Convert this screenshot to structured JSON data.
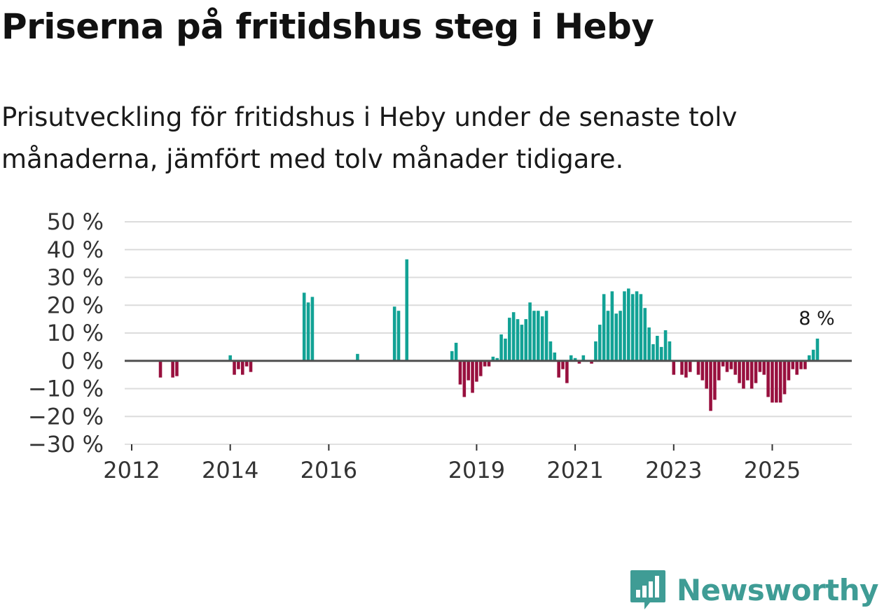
{
  "title": "Priserna på fritidshus steg i Heby",
  "subtitle": "Prisutveckling för fritidshus i Heby under de senaste tolv månaderna, jämfört med tolv månader tidigare.",
  "brand": {
    "name": "Newsworthy",
    "icon": "newsworthy-logo-icon",
    "color": "#3f9c95"
  },
  "colors": {
    "positive": "#12a295",
    "negative": "#98103e",
    "grid": "#dcdcdc",
    "zero": "#505050"
  },
  "chart_data": {
    "type": "bar",
    "unit": "%",
    "ylim": [
      -30,
      50
    ],
    "yticks": [
      50,
      40,
      30,
      20,
      10,
      0,
      -10,
      -20,
      -30
    ],
    "ytick_labels": [
      "50 %",
      "40 %",
      "30 %",
      "20 %",
      "10 %",
      "0 %",
      "−10 %",
      "−20 %",
      "−30 %"
    ],
    "xlim": [
      2012,
      2026.5
    ],
    "xticks": [
      2012,
      2014,
      2016,
      2019,
      2021,
      2023,
      2025
    ],
    "xtick_labels": [
      "2012",
      "2014",
      "2016",
      "2019",
      "2021",
      "2023",
      "2025"
    ],
    "grid": true,
    "last_value_label": "8 %",
    "series": [
      {
        "name": "Prisutveckling",
        "points": [
          [
            "2012-08",
            -6
          ],
          [
            "2012-11",
            -6
          ],
          [
            "2012-12",
            -5.5
          ],
          [
            "2014-01",
            2
          ],
          [
            "2014-02",
            -5
          ],
          [
            "2014-03",
            -3
          ],
          [
            "2014-04",
            -5
          ],
          [
            "2014-05",
            -2
          ],
          [
            "2014-06",
            -4
          ],
          [
            "2015-07",
            24.5
          ],
          [
            "2015-08",
            21
          ],
          [
            "2015-09",
            23
          ],
          [
            "2016-08",
            2.5
          ],
          [
            "2017-05",
            19.5
          ],
          [
            "2017-06",
            18
          ],
          [
            "2017-08",
            36.5
          ],
          [
            "2018-07",
            3.5
          ],
          [
            "2018-08",
            6.5
          ],
          [
            "2018-09",
            -8.5
          ],
          [
            "2018-10",
            -13
          ],
          [
            "2018-11",
            -7
          ],
          [
            "2018-12",
            -11.5
          ],
          [
            "2019-01",
            -7.5
          ],
          [
            "2019-02",
            -5.5
          ],
          [
            "2019-03",
            -2
          ],
          [
            "2019-04",
            -2
          ],
          [
            "2019-05",
            1.5
          ],
          [
            "2019-06",
            1
          ],
          [
            "2019-07",
            9.5
          ],
          [
            "2019-08",
            8
          ],
          [
            "2019-09",
            15.5
          ],
          [
            "2019-10",
            17.5
          ],
          [
            "2019-11",
            15
          ],
          [
            "2019-12",
            13
          ],
          [
            "2020-01",
            15
          ],
          [
            "2020-02",
            21
          ],
          [
            "2020-03",
            18
          ],
          [
            "2020-04",
            18
          ],
          [
            "2020-05",
            16
          ],
          [
            "2020-06",
            18
          ],
          [
            "2020-07",
            7
          ],
          [
            "2020-08",
            3
          ],
          [
            "2020-09",
            -6
          ],
          [
            "2020-10",
            -3
          ],
          [
            "2020-11",
            -8
          ],
          [
            "2020-12",
            2
          ],
          [
            "2021-01",
            1
          ],
          [
            "2021-02",
            -1
          ],
          [
            "2021-03",
            2
          ],
          [
            "2021-05",
            -1
          ],
          [
            "2021-06",
            7
          ],
          [
            "2021-07",
            13
          ],
          [
            "2021-08",
            24
          ],
          [
            "2021-09",
            18
          ],
          [
            "2021-10",
            25
          ],
          [
            "2021-11",
            17
          ],
          [
            "2021-12",
            18
          ],
          [
            "2022-01",
            25
          ],
          [
            "2022-02",
            26
          ],
          [
            "2022-03",
            24
          ],
          [
            "2022-04",
            25
          ],
          [
            "2022-05",
            24
          ],
          [
            "2022-06",
            19
          ],
          [
            "2022-07",
            12
          ],
          [
            "2022-08",
            6
          ],
          [
            "2022-09",
            9
          ],
          [
            "2022-10",
            5
          ],
          [
            "2022-11",
            11
          ],
          [
            "2022-12",
            7
          ],
          [
            "2023-01",
            -5
          ],
          [
            "2023-03",
            -5
          ],
          [
            "2023-04",
            -6
          ],
          [
            "2023-05",
            -4
          ],
          [
            "2023-07",
            -5
          ],
          [
            "2023-08",
            -7
          ],
          [
            "2023-09",
            -10
          ],
          [
            "2023-10",
            -18
          ],
          [
            "2023-11",
            -14
          ],
          [
            "2023-12",
            -7
          ],
          [
            "2024-01",
            -2
          ],
          [
            "2024-02",
            -4
          ],
          [
            "2024-03",
            -3
          ],
          [
            "2024-04",
            -5
          ],
          [
            "2024-05",
            -8
          ],
          [
            "2024-06",
            -10
          ],
          [
            "2024-07",
            -7
          ],
          [
            "2024-08",
            -10
          ],
          [
            "2024-09",
            -8
          ],
          [
            "2024-10",
            -4
          ],
          [
            "2024-11",
            -5
          ],
          [
            "2024-12",
            -13
          ],
          [
            "2025-01",
            -15
          ],
          [
            "2025-02",
            -15
          ],
          [
            "2025-03",
            -15
          ],
          [
            "2025-04",
            -12
          ],
          [
            "2025-05",
            -7
          ],
          [
            "2025-06",
            -3
          ],
          [
            "2025-07",
            -5
          ],
          [
            "2025-08",
            -3
          ],
          [
            "2025-09",
            -3
          ],
          [
            "2025-10",
            2
          ],
          [
            "2025-11",
            4
          ],
          [
            "2025-12",
            8
          ]
        ]
      }
    ]
  }
}
